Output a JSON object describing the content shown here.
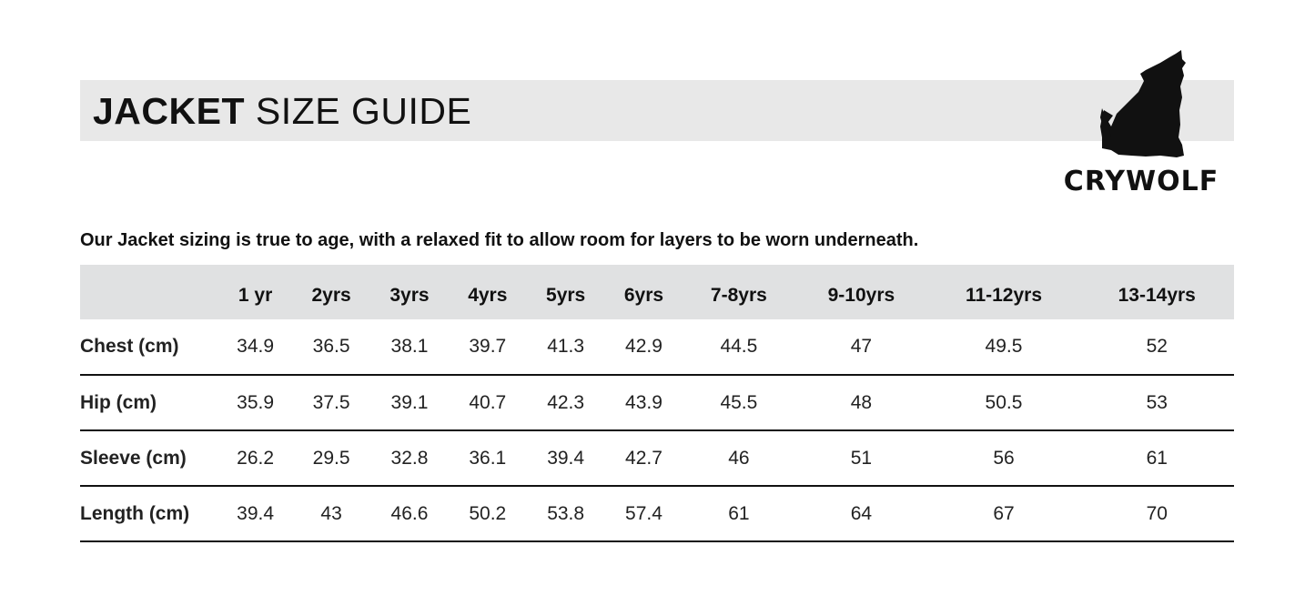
{
  "header": {
    "title_bold": "JACKET",
    "title_rest": " SIZE GUIDE"
  },
  "logo": {
    "text": "CRYWOLF",
    "icon": "howling-wolf"
  },
  "intro": "Our Jacket sizing is true to age, with a relaxed fit to allow room for layers to be worn underneath.",
  "table": {
    "columns": [
      "1 yr",
      "2yrs",
      "3yrs",
      "4yrs",
      "5yrs",
      "6yrs",
      "7-8yrs",
      "9-10yrs",
      "11-12yrs",
      "13-14yrs"
    ],
    "rows": [
      {
        "label": "Chest (cm)",
        "values": [
          "34.9",
          "36.5",
          "38.1",
          "39.7",
          "41.3",
          "42.9",
          "44.5",
          "47",
          "49.5",
          "52"
        ]
      },
      {
        "label": "Hip (cm)",
        "values": [
          "35.9",
          "37.5",
          "39.1",
          "40.7",
          "42.3",
          "43.9",
          "45.5",
          "48",
          "50.5",
          "53"
        ]
      },
      {
        "label": "Sleeve (cm)",
        "values": [
          "26.2",
          "29.5",
          "32.8",
          "36.1",
          "39.4",
          "42.7",
          "46",
          "51",
          "56",
          "61"
        ]
      },
      {
        "label": "Length (cm)",
        "values": [
          "39.4",
          "43",
          "46.6",
          "50.2",
          "53.8",
          "57.4",
          "61",
          "64",
          "67",
          "70"
        ]
      }
    ]
  },
  "colors": {
    "title_bar": "#e8e8e8",
    "header_row": "#e0e1e2",
    "text": "#111111"
  }
}
